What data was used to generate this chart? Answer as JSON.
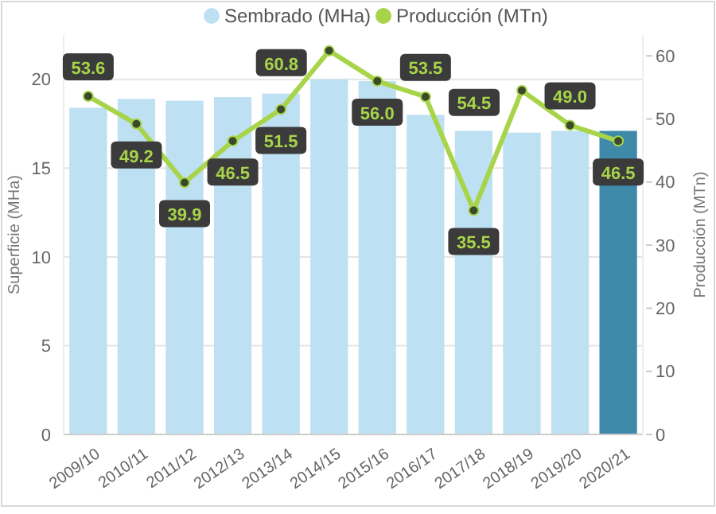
{
  "chart_data": {
    "type": "bar",
    "ylabel": "Superficie (MHa)",
    "y2label": "Producción (MTn)",
    "categories": [
      "2009/10",
      "2010/11",
      "2011/12",
      "2012/13",
      "2013/14",
      "2014/15",
      "2015/16",
      "2016/17",
      "2017/18",
      "2018/19",
      "2019/20",
      "2020/21"
    ],
    "series": [
      {
        "name": "Sembrado (MHa)",
        "color": "#bde0f3",
        "colors": [
          "#bde0f3",
          "#bde0f3",
          "#bde0f3",
          "#bde0f3",
          "#bde0f3",
          "#bde0f3",
          "#bde0f3",
          "#bde0f3",
          "#bde0f3",
          "#bde0f3",
          "#bde0f3",
          "#3f8aab"
        ],
        "values": [
          18.4,
          18.9,
          18.8,
          19.0,
          19.2,
          20.0,
          19.9,
          18.0,
          17.1,
          17.0,
          17.1,
          17.1
        ]
      },
      {
        "name": "Producción (MTn)",
        "type": "line",
        "axis": "y2",
        "color": "#a8d44a",
        "values": [
          53.6,
          49.2,
          39.9,
          46.5,
          51.5,
          60.8,
          56.0,
          53.5,
          35.5,
          54.5,
          49.0,
          46.5
        ],
        "value_labels": [
          "53.6",
          "49.2",
          "39.9",
          "46.5",
          "51.5",
          "60.8",
          "56.0",
          "53.5",
          "35.5",
          "54.5",
          "49.0",
          "46.5"
        ]
      }
    ],
    "ylim": [
      0,
      22.5
    ],
    "yticks": [
      0,
      5,
      10,
      15,
      20
    ],
    "y2lim": [
      0,
      63.3
    ],
    "y2ticks": [
      0,
      10,
      20,
      30,
      40,
      50,
      60
    ],
    "grid": "y",
    "legend": "top",
    "marker": "circle",
    "line_style": "solid"
  }
}
